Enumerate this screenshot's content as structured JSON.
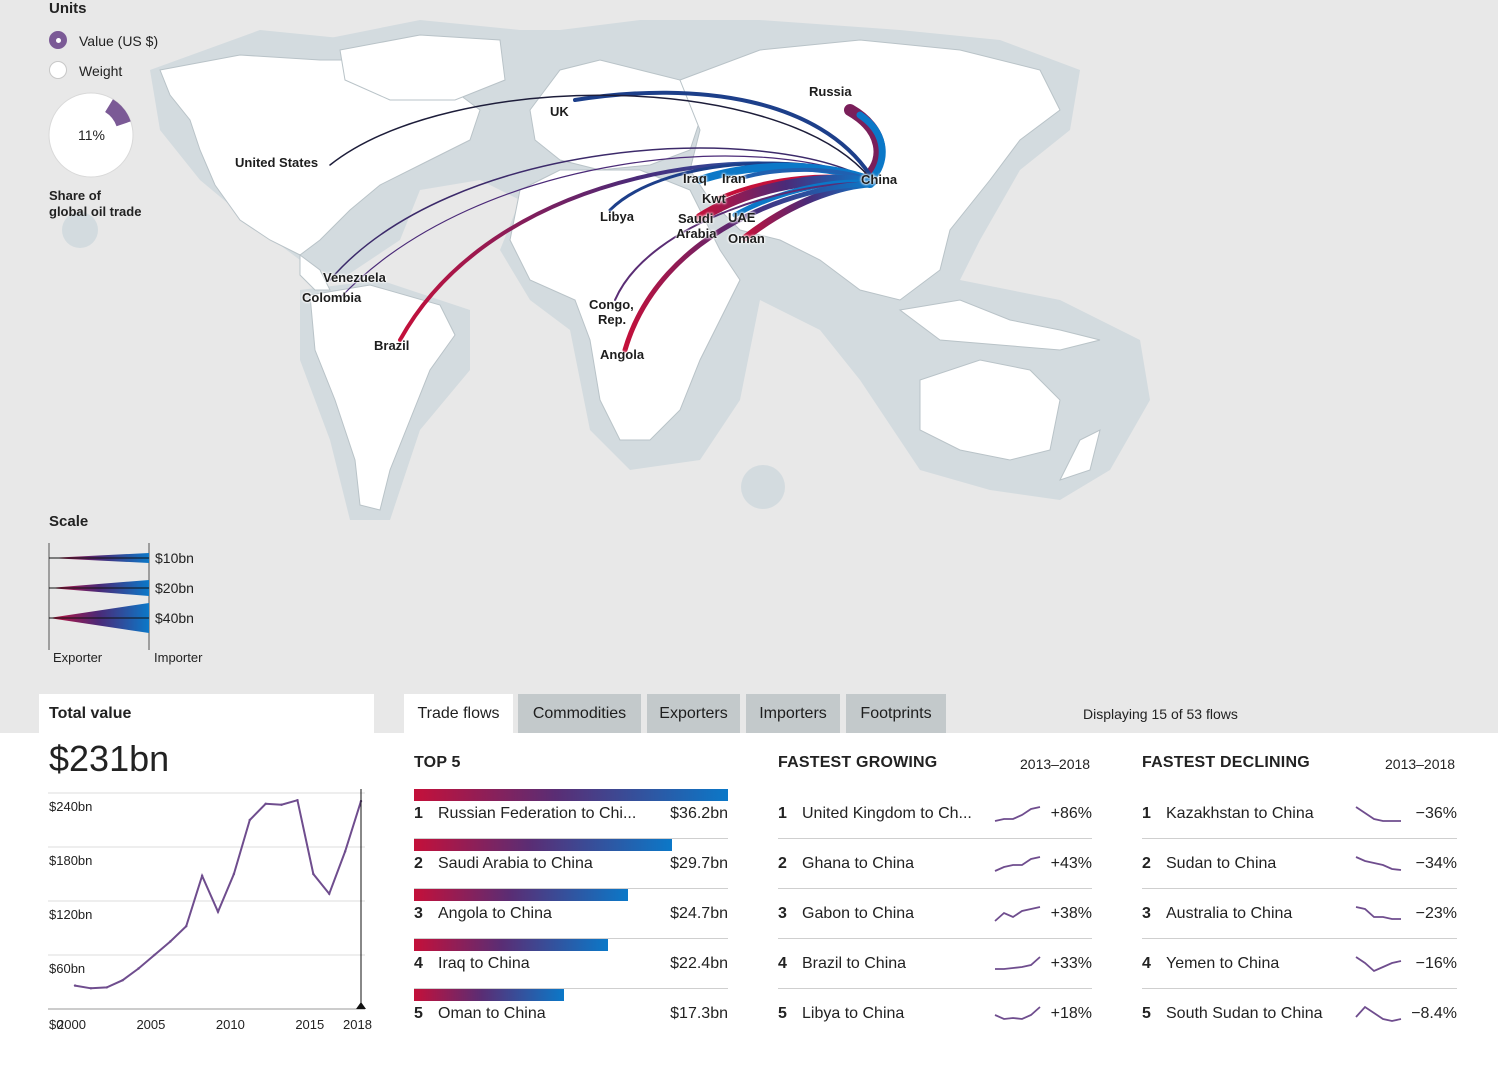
{
  "units": {
    "title": "Units",
    "options": [
      {
        "label": "Value (US $)",
        "selected": true
      },
      {
        "label": "Weight",
        "selected": false
      }
    ],
    "share_percent": "11%",
    "share_fraction": 0.11,
    "share_caption_line1": "Share of",
    "share_caption_line2": "global oil trade"
  },
  "scale": {
    "title": "Scale",
    "levels": [
      "$10bn",
      "$20bn",
      "$40bn"
    ],
    "exporter_label": "Exporter",
    "importer_label": "Importer"
  },
  "map_labels": {
    "russia": "Russia",
    "uk": "UK",
    "united_states": "United States",
    "china": "China",
    "iraq": "Iraq",
    "iran": "Iran",
    "kwt": "Kwt",
    "libya": "Libya",
    "saudi_line1": "Saudi",
    "saudi_line2": "Arabia",
    "uae": "UAE",
    "oman": "Oman",
    "venezuela": "Venezuela",
    "colombia": "Colombia",
    "brazil": "Brazil",
    "congo_line1": "Congo,",
    "congo_line2": "Rep.",
    "angola": "Angola"
  },
  "tabs": [
    "Trade flows",
    "Commodities",
    "Exporters",
    "Importers",
    "Footprints"
  ],
  "active_tab": "Trade flows",
  "displaying": "Displaying 15 of 53 flows",
  "total": {
    "heading": "Total value",
    "value": "$231bn",
    "y_ticks": [
      "$240bn",
      "$180bn",
      "$120bn",
      "$60bn",
      "$0"
    ],
    "x_ticks": [
      "2000",
      "2005",
      "2010",
      "2015",
      "2018"
    ]
  },
  "chart_data": {
    "type": "line",
    "title": "",
    "xlabel": "",
    "ylabel": "",
    "ylim": [
      0,
      240
    ],
    "xlim": [
      2000,
      2018
    ],
    "x": [
      2000,
      2001,
      2002,
      2003,
      2004,
      2005,
      2006,
      2007,
      2008,
      2009,
      2010,
      2011,
      2012,
      2013,
      2014,
      2015,
      2016,
      2017,
      2018
    ],
    "series": [
      {
        "values": [
          26,
          23,
          24,
          32,
          45,
          60,
          75,
          92,
          148,
          108,
          150,
          210,
          228,
          227,
          232,
          150,
          128,
          175,
          231
        ]
      }
    ]
  },
  "top5": {
    "heading": "TOP 5",
    "items": [
      {
        "rank": "1",
        "label": "Russian Federation to Chi...",
        "value": "$36.2bn",
        "amount": 36.2
      },
      {
        "rank": "2",
        "label": "Saudi Arabia to China",
        "value": "$29.7bn",
        "amount": 29.7
      },
      {
        "rank": "3",
        "label": "Angola to China",
        "value": "$24.7bn",
        "amount": 24.7
      },
      {
        "rank": "4",
        "label": "Iraq to China",
        "value": "$22.4bn",
        "amount": 22.4
      },
      {
        "rank": "5",
        "label": "Oman to China",
        "value": "$17.3bn",
        "amount": 17.3
      }
    ]
  },
  "growing": {
    "heading": "FASTEST GROWING",
    "range": "2013–2018",
    "items": [
      {
        "rank": "1",
        "label": "United Kingdom to Ch...",
        "value": "+86%",
        "spark": [
          2,
          3,
          3,
          5,
          8,
          9
        ]
      },
      {
        "rank": "2",
        "label": "Ghana to China",
        "value": "+43%",
        "spark": [
          2,
          4,
          5,
          5,
          8,
          9
        ]
      },
      {
        "rank": "3",
        "label": "Gabon to China",
        "value": "+38%",
        "spark": [
          2,
          6,
          4,
          7,
          8,
          9
        ]
      },
      {
        "rank": "4",
        "label": "Brazil to China",
        "value": "+33%",
        "spark": [
          3,
          3,
          3.5,
          4,
          5,
          9
        ]
      },
      {
        "rank": "5",
        "label": "Libya to China",
        "value": "+18%",
        "spark": [
          5,
          3,
          3.5,
          3,
          5,
          9
        ]
      }
    ]
  },
  "declining": {
    "heading": "FASTEST DECLINING",
    "range": "2013–2018",
    "items": [
      {
        "rank": "1",
        "label": "Kazakhstan to China",
        "value": "−36%",
        "spark": [
          9,
          6,
          3,
          2,
          2,
          2
        ]
      },
      {
        "rank": "2",
        "label": "Sudan to China",
        "value": "−34%",
        "spark": [
          9,
          7,
          6,
          5,
          3,
          2.5
        ]
      },
      {
        "rank": "3",
        "label": "Australia to China",
        "value": "−23%",
        "spark": [
          9,
          8,
          4,
          4,
          3,
          3
        ]
      },
      {
        "rank": "4",
        "label": "Yemen to China",
        "value": "−16%",
        "spark": [
          9,
          6,
          2,
          4,
          6,
          7
        ]
      },
      {
        "rank": "5",
        "label": "South Sudan to China",
        "value": "−8.4%",
        "spark": [
          4,
          9,
          6,
          3,
          2,
          3
        ]
      }
    ]
  }
}
